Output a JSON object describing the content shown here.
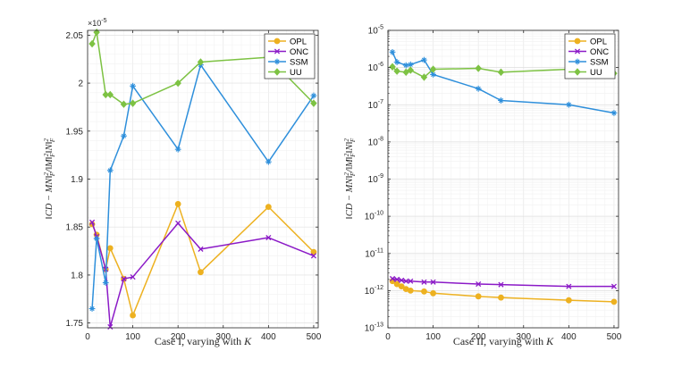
{
  "chart_data": [
    {
      "type": "line",
      "id": "left",
      "yscale": "linear",
      "xlabel": "Case I, varying with K",
      "ylabel": "||CD − MN||²_F / ||M||²_F ||N||²_F",
      "exponent_label": "×10^-5",
      "xlim": [
        0,
        510
      ],
      "ylim": [
        1.745,
        2.055
      ],
      "xticks": [
        "0",
        "100",
        "200",
        "300",
        "400",
        "500"
      ],
      "yticks": [
        "1.75",
        "1.8",
        "1.85",
        "1.9",
        "1.95",
        "2",
        "2.05"
      ],
      "xtick_values": [
        0,
        100,
        200,
        300,
        400,
        500
      ],
      "ytick_values": [
        1.75,
        1.8,
        1.85,
        1.9,
        1.95,
        2.0,
        2.05
      ],
      "legend_position": "top-right",
      "series": [
        {
          "name": "OPL",
          "color": "#EDB120",
          "marker": "circle",
          "x": [
            10,
            20,
            40,
            50,
            80,
            100,
            200,
            250,
            400,
            500
          ],
          "y": [
            1.853,
            1.842,
            1.806,
            1.828,
            1.796,
            1.758,
            1.874,
            1.803,
            1.871,
            1.824
          ]
        },
        {
          "name": "ONC",
          "color": "#8B1AC7",
          "marker": "x",
          "x": [
            10,
            20,
            40,
            50,
            80,
            100,
            200,
            250,
            400,
            500
          ],
          "y": [
            1.855,
            1.84,
            1.806,
            1.746,
            1.796,
            1.798,
            1.854,
            1.827,
            1.839,
            1.82
          ]
        },
        {
          "name": "SSM",
          "color": "#2E8FDB",
          "marker": "star",
          "x": [
            10,
            20,
            40,
            50,
            80,
            100,
            200,
            250,
            400,
            500
          ],
          "y": [
            1.765,
            1.838,
            1.792,
            1.909,
            1.945,
            1.997,
            1.931,
            2.019,
            1.918,
            1.987
          ]
        },
        {
          "name": "UU",
          "color": "#7DC243",
          "marker": "diamond",
          "x": [
            10,
            20,
            40,
            50,
            80,
            100,
            200,
            250,
            400,
            500
          ],
          "y": [
            2.041,
            2.053,
            1.988,
            1.988,
            1.978,
            1.979,
            2.0,
            2.022,
            2.027,
            1.979
          ]
        }
      ]
    },
    {
      "type": "line",
      "id": "right",
      "yscale": "log",
      "xlabel": "Case II, varying with K",
      "ylabel": "||CD − MN||²_F / ||M||²_F ||N||²_F",
      "xlim": [
        0,
        510
      ],
      "ylim_exp": [
        -13,
        -5
      ],
      "xticks": [
        "0",
        "100",
        "200",
        "300",
        "400",
        "500"
      ],
      "xtick_values": [
        0,
        100,
        200,
        300,
        400,
        500
      ],
      "ytick_exps": [
        "-13",
        "-12",
        "-11",
        "-10",
        "-9",
        "-8",
        "-7",
        "-6",
        "-5"
      ],
      "ytick_values": [
        -13,
        -12,
        -11,
        -10,
        -9,
        -8,
        -7,
        -6,
        -5
      ],
      "legend_position": "top-right",
      "series": [
        {
          "name": "OPL",
          "color": "#EDB120",
          "marker": "circle",
          "x": [
            10,
            20,
            30,
            40,
            50,
            80,
            100,
            200,
            250,
            400,
            500
          ],
          "y": [
            1.8e-12,
            1.5e-12,
            1.3e-12,
            1.1e-12,
            1e-12,
            9.5e-13,
            8.5e-13,
            7e-13,
            6.5e-13,
            5.5e-13,
            5e-13
          ]
        },
        {
          "name": "ONC",
          "color": "#8B1AC7",
          "marker": "x",
          "x": [
            10,
            20,
            30,
            40,
            50,
            80,
            100,
            200,
            250,
            400,
            500
          ],
          "y": [
            2.1e-12,
            2e-12,
            1.9e-12,
            1.8e-12,
            1.8e-12,
            1.7e-12,
            1.7e-12,
            1.5e-12,
            1.45e-12,
            1.3e-12,
            1.3e-12
          ]
        },
        {
          "name": "SSM",
          "color": "#2E8FDB",
          "marker": "star",
          "x": [
            10,
            20,
            40,
            50,
            80,
            100,
            200,
            250,
            400,
            500
          ],
          "y": [
            2.6e-06,
            1.4e-06,
            1.15e-06,
            1.2e-06,
            1.6e-06,
            6.5e-07,
            2.7e-07,
            1.3e-07,
            1e-07,
            6e-08
          ]
        },
        {
          "name": "UU",
          "color": "#7DC243",
          "marker": "diamond",
          "x": [
            10,
            20,
            40,
            50,
            80,
            100,
            200,
            250,
            400,
            500
          ],
          "y": [
            1.05e-06,
            8e-07,
            7.5e-07,
            8.5e-07,
            5.5e-07,
            9e-07,
            9.5e-07,
            7.5e-07,
            9e-07,
            7e-07
          ]
        }
      ]
    }
  ]
}
